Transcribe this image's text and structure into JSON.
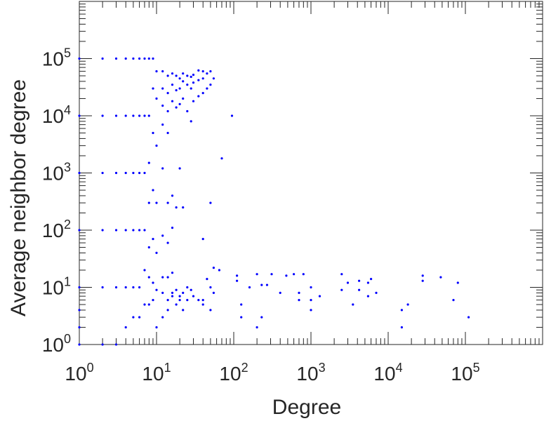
{
  "chart_data": {
    "type": "scatter",
    "title": "",
    "xlabel": "Degree",
    "ylabel": "Average neighbor degree",
    "x_scale": "log",
    "y_scale": "log",
    "xlim": [
      1,
      1000000
    ],
    "ylim": [
      1,
      1000000
    ],
    "grid": false,
    "legend": "none",
    "marker_color": "#0000ff",
    "x_ticks": [
      {
        "value": 1,
        "base": "10",
        "exp": "0"
      },
      {
        "value": 10,
        "base": "10",
        "exp": "1"
      },
      {
        "value": 100,
        "base": "10",
        "exp": "2"
      },
      {
        "value": 1000,
        "base": "10",
        "exp": "3"
      },
      {
        "value": 10000,
        "base": "10",
        "exp": "4"
      },
      {
        "value": 100000,
        "base": "10",
        "exp": "5"
      }
    ],
    "y_ticks": [
      {
        "value": 1,
        "base": "10",
        "exp": "0"
      },
      {
        "value": 10,
        "base": "10",
        "exp": "1"
      },
      {
        "value": 100,
        "base": "10",
        "exp": "2"
      },
      {
        "value": 1000,
        "base": "10",
        "exp": "3"
      },
      {
        "value": 10000,
        "base": "10",
        "exp": "4"
      },
      {
        "value": 100000,
        "base": "10",
        "exp": "5"
      }
    ],
    "points": [
      [
        1,
        1
      ],
      [
        1,
        2
      ],
      [
        1,
        4
      ],
      [
        1,
        10
      ],
      [
        1,
        100
      ],
      [
        1,
        1000
      ],
      [
        1,
        10000
      ],
      [
        1,
        100000
      ],
      [
        2,
        1
      ],
      [
        2,
        10
      ],
      [
        2,
        100
      ],
      [
        2,
        1000
      ],
      [
        2,
        10000
      ],
      [
        2,
        100000
      ],
      [
        3,
        1
      ],
      [
        3,
        10
      ],
      [
        3,
        100
      ],
      [
        3,
        1000
      ],
      [
        3,
        10000
      ],
      [
        3,
        100000
      ],
      [
        4,
        2
      ],
      [
        4,
        10
      ],
      [
        4,
        100
      ],
      [
        4,
        1000
      ],
      [
        4,
        10000
      ],
      [
        4,
        100000
      ],
      [
        5,
        3
      ],
      [
        5,
        10
      ],
      [
        5,
        100
      ],
      [
        5,
        1000
      ],
      [
        5,
        10000
      ],
      [
        5,
        100000
      ],
      [
        6,
        3
      ],
      [
        6,
        10
      ],
      [
        6,
        100
      ],
      [
        6,
        1000
      ],
      [
        6,
        10000
      ],
      [
        6,
        100000
      ],
      [
        7,
        5
      ],
      [
        7,
        20
      ],
      [
        7,
        100
      ],
      [
        7,
        1000
      ],
      [
        7,
        10000
      ],
      [
        7,
        100000
      ],
      [
        8,
        5
      ],
      [
        8,
        15
      ],
      [
        8,
        50
      ],
      [
        8,
        300
      ],
      [
        8,
        1500
      ],
      [
        8,
        10000
      ],
      [
        8,
        100000
      ],
      [
        9,
        6
      ],
      [
        9,
        12
      ],
      [
        9,
        70
      ],
      [
        9,
        500
      ],
      [
        9,
        5000
      ],
      [
        9,
        30000
      ],
      [
        9,
        100000
      ],
      [
        10,
        2
      ],
      [
        10,
        9
      ],
      [
        10,
        40
      ],
      [
        10,
        300
      ],
      [
        10,
        3000
      ],
      [
        10,
        20000
      ],
      [
        10,
        60000
      ],
      [
        12,
        3
      ],
      [
        12,
        8
      ],
      [
        12,
        15
      ],
      [
        12,
        80
      ],
      [
        12,
        1200
      ],
      [
        12,
        7000
      ],
      [
        12,
        15000
      ],
      [
        12,
        30000
      ],
      [
        12,
        60000
      ],
      [
        14,
        4
      ],
      [
        14,
        6
      ],
      [
        14,
        15
      ],
      [
        14,
        60
      ],
      [
        14,
        300
      ],
      [
        14,
        5000
      ],
      [
        14,
        12000
      ],
      [
        14,
        25000
      ],
      [
        14,
        50000
      ],
      [
        16,
        7
      ],
      [
        16,
        8
      ],
      [
        16,
        18
      ],
      [
        16,
        110
      ],
      [
        16,
        400
      ],
      [
        16,
        18000
      ],
      [
        16,
        35000
      ],
      [
        16,
        55000
      ],
      [
        18,
        5
      ],
      [
        18,
        9
      ],
      [
        18,
        250
      ],
      [
        18,
        14000
      ],
      [
        18,
        28000
      ],
      [
        18,
        50000
      ],
      [
        20,
        6
      ],
      [
        20,
        7
      ],
      [
        20,
        1200
      ],
      [
        20,
        16000
      ],
      [
        20,
        30000
      ],
      [
        20,
        45000
      ],
      [
        22,
        4
      ],
      [
        22,
        8
      ],
      [
        22,
        250
      ],
      [
        22,
        20000
      ],
      [
        22,
        40000
      ],
      [
        22,
        55000
      ],
      [
        25,
        6
      ],
      [
        25,
        10
      ],
      [
        25,
        12000
      ],
      [
        25,
        35000
      ],
      [
        25,
        50000
      ],
      [
        28,
        9
      ],
      [
        28,
        8000
      ],
      [
        28,
        30000
      ],
      [
        28,
        48000
      ],
      [
        30,
        7
      ],
      [
        30,
        18000
      ],
      [
        30,
        38000
      ],
      [
        30,
        52000
      ],
      [
        35,
        6
      ],
      [
        35,
        22000
      ],
      [
        35,
        42000
      ],
      [
        35,
        62000
      ],
      [
        40,
        5
      ],
      [
        40,
        6
      ],
      [
        40,
        70
      ],
      [
        40,
        25000
      ],
      [
        40,
        45000
      ],
      [
        40,
        60000
      ],
      [
        45,
        14
      ],
      [
        45,
        30000
      ],
      [
        45,
        55000
      ],
      [
        50,
        4
      ],
      [
        50,
        10
      ],
      [
        50,
        300
      ],
      [
        50,
        35000
      ],
      [
        50,
        60000
      ],
      [
        55,
        8
      ],
      [
        55,
        22
      ],
      [
        55,
        45000
      ],
      [
        65,
        20
      ],
      [
        70,
        1800
      ],
      [
        95,
        10000
      ],
      [
        110,
        16
      ],
      [
        110,
        13
      ],
      [
        125,
        3
      ],
      [
        125,
        5
      ],
      [
        160,
        10
      ],
      [
        200,
        2
      ],
      [
        200,
        17
      ],
      [
        230,
        3
      ],
      [
        230,
        11
      ],
      [
        270,
        11
      ],
      [
        310,
        17
      ],
      [
        400,
        8
      ],
      [
        480,
        16
      ],
      [
        600,
        17
      ],
      [
        700,
        6
      ],
      [
        700,
        8
      ],
      [
        800,
        17
      ],
      [
        1000,
        4
      ],
      [
        1000,
        6
      ],
      [
        1000,
        10
      ],
      [
        1300,
        7
      ],
      [
        2500,
        9
      ],
      [
        2500,
        17
      ],
      [
        3000,
        12
      ],
      [
        3500,
        5
      ],
      [
        4200,
        9
      ],
      [
        4200,
        13
      ],
      [
        5500,
        7
      ],
      [
        5500,
        12
      ],
      [
        6000,
        14
      ],
      [
        7000,
        8
      ],
      [
        15000,
        2
      ],
      [
        15000,
        4
      ],
      [
        18000,
        5
      ],
      [
        28000,
        13
      ],
      [
        28000,
        16
      ],
      [
        48000,
        15
      ],
      [
        70000,
        6
      ],
      [
        80000,
        12
      ],
      [
        110000,
        3
      ]
    ]
  }
}
